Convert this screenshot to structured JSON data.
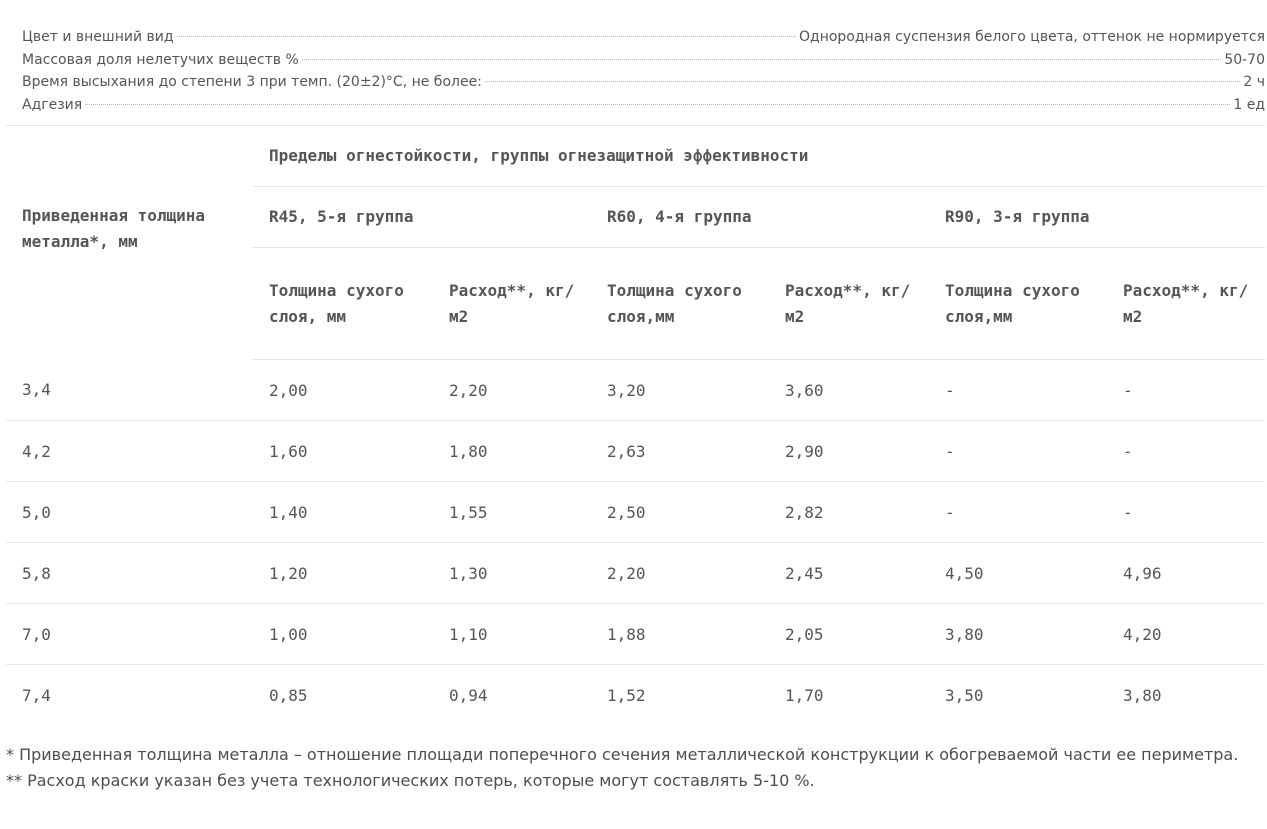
{
  "properties": [
    {
      "label": "Цвет и внешний вид",
      "value": "Однородная суспензия белого цвета, оттенок не нормируется"
    },
    {
      "label": "Массовая доля нелетучих веществ %",
      "value": "50-70"
    },
    {
      "label": "Время высыхания до степени 3 при темп. (20±2)°С, не более:",
      "value": "2 ч"
    },
    {
      "label": "Адгезия",
      "value": "1 ед"
    }
  ],
  "table": {
    "group_header": "Пределы огнестойкости, группы огнезащитной эффективности",
    "first_col_header": "Приведенная толщина металла*, мм",
    "groups": [
      "R45, 5-я группа",
      "R60, 4-я группа",
      "R90, 3-я группа"
    ],
    "sub_headers": [
      "Толщина сухого слоя, мм",
      "Расход**, кг/м2",
      "Толщина сухого слоя,мм",
      "Расход**, кг/м2",
      "Толщина сухого слоя,мм",
      "Расход**, кг/м2"
    ],
    "rows": [
      [
        "3,4",
        "2,00",
        "2,20",
        "3,20",
        "3,60",
        "-",
        "-"
      ],
      [
        "4,2",
        "1,60",
        "1,80",
        "2,63",
        "2,90",
        "-",
        "-"
      ],
      [
        "5,0",
        "1,40",
        "1,55",
        "2,50",
        "2,82",
        "-",
        "-"
      ],
      [
        "5,8",
        "1,20",
        "1,30",
        "2,20",
        "2,45",
        "4,50",
        "4,96"
      ],
      [
        "7,0",
        "1,00",
        "1,10",
        "1,88",
        "2,05",
        "3,80",
        "4,20"
      ],
      [
        "7,4",
        "0,85",
        "0,94",
        "1,52",
        "1,70",
        "3,50",
        "3,80"
      ]
    ]
  },
  "footnotes": [
    "* Приведенная толщина металла – отношение площади поперечного сечения металлической конструкции к обогреваемой части ее периметра.",
    "** Расход краски указан без учета технологических потерь, которые могут составлять 5-10 %."
  ]
}
